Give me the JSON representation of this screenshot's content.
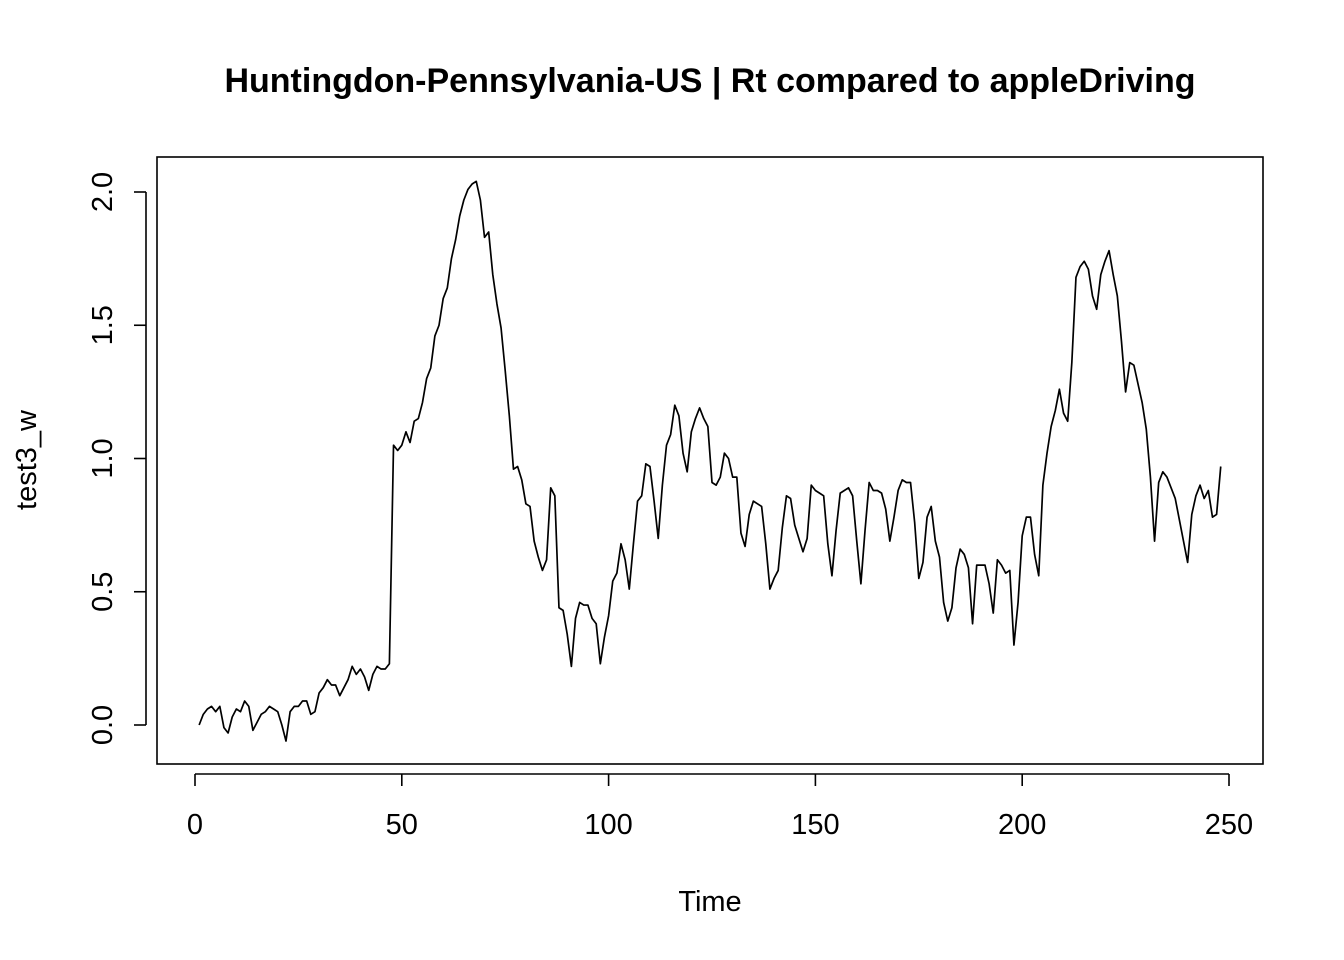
{
  "chart_data": {
    "type": "line",
    "title": "Huntingdon-Pennsylvania-US | Rt compared to appleDriving",
    "xlabel": "Time",
    "ylabel": "test3_w",
    "xlim": [
      0,
      250
    ],
    "ylim": [
      -0.05,
      2.05
    ],
    "x_ticks": [
      0,
      50,
      100,
      150,
      200,
      250
    ],
    "y_ticks": [
      0.0,
      0.5,
      1.0,
      1.5,
      2.0
    ],
    "x_tick_labels": [
      "0",
      "50",
      "100",
      "150",
      "200",
      "250"
    ],
    "y_tick_labels": [
      "0.0",
      "0.5",
      "1.0",
      "1.5",
      "2.0"
    ],
    "grid": false,
    "x_start": 1,
    "values": [
      0.0,
      0.04,
      0.06,
      0.07,
      0.05,
      0.07,
      -0.01,
      -0.03,
      0.03,
      0.06,
      0.05,
      0.09,
      0.07,
      -0.02,
      0.01,
      0.04,
      0.05,
      0.07,
      0.06,
      0.05,
      0.0,
      -0.06,
      0.05,
      0.07,
      0.07,
      0.09,
      0.09,
      0.04,
      0.05,
      0.12,
      0.14,
      0.17,
      0.15,
      0.15,
      0.11,
      0.14,
      0.17,
      0.22,
      0.19,
      0.21,
      0.18,
      0.13,
      0.19,
      0.22,
      0.21,
      0.21,
      0.23,
      1.05,
      1.03,
      1.05,
      1.1,
      1.06,
      1.14,
      1.15,
      1.21,
      1.3,
      1.34,
      1.46,
      1.5,
      1.6,
      1.64,
      1.75,
      1.82,
      1.91,
      1.97,
      2.01,
      2.03,
      2.04,
      1.97,
      1.83,
      1.85,
      1.69,
      1.58,
      1.49,
      1.33,
      1.16,
      0.96,
      0.97,
      0.92,
      0.83,
      0.82,
      0.69,
      0.63,
      0.58,
      0.62,
      0.89,
      0.86,
      0.44,
      0.43,
      0.34,
      0.22,
      0.4,
      0.46,
      0.45,
      0.45,
      0.4,
      0.38,
      0.23,
      0.33,
      0.41,
      0.54,
      0.57,
      0.68,
      0.62,
      0.51,
      0.68,
      0.84,
      0.86,
      0.98,
      0.97,
      0.84,
      0.7,
      0.9,
      1.05,
      1.09,
      1.2,
      1.16,
      1.02,
      0.95,
      1.1,
      1.15,
      1.19,
      1.15,
      1.12,
      0.91,
      0.9,
      0.93,
      1.02,
      1.0,
      0.93,
      0.93,
      0.72,
      0.67,
      0.79,
      0.84,
      0.83,
      0.82,
      0.68,
      0.51,
      0.55,
      0.58,
      0.74,
      0.86,
      0.85,
      0.75,
      0.7,
      0.65,
      0.7,
      0.9,
      0.88,
      0.87,
      0.86,
      0.68,
      0.56,
      0.73,
      0.87,
      0.88,
      0.89,
      0.86,
      0.69,
      0.53,
      0.73,
      0.91,
      0.88,
      0.88,
      0.87,
      0.81,
      0.69,
      0.78,
      0.88,
      0.92,
      0.91,
      0.91,
      0.76,
      0.55,
      0.61,
      0.78,
      0.82,
      0.69,
      0.63,
      0.46,
      0.39,
      0.44,
      0.59,
      0.66,
      0.64,
      0.59,
      0.38,
      0.6,
      0.6,
      0.6,
      0.53,
      0.42,
      0.62,
      0.6,
      0.57,
      0.58,
      0.3,
      0.46,
      0.71,
      0.78,
      0.78,
      0.64,
      0.56,
      0.9,
      1.02,
      1.12,
      1.18,
      1.26,
      1.17,
      1.14,
      1.36,
      1.68,
      1.72,
      1.74,
      1.71,
      1.61,
      1.56,
      1.69,
      1.74,
      1.78,
      1.69,
      1.61,
      1.44,
      1.25,
      1.36,
      1.35,
      1.28,
      1.21,
      1.11,
      0.93,
      0.69,
      0.91,
      0.95,
      0.93,
      0.89,
      0.85,
      0.77,
      0.69,
      0.61,
      0.79,
      0.86,
      0.9,
      0.85,
      0.88,
      0.78,
      0.79,
      0.97
    ]
  }
}
